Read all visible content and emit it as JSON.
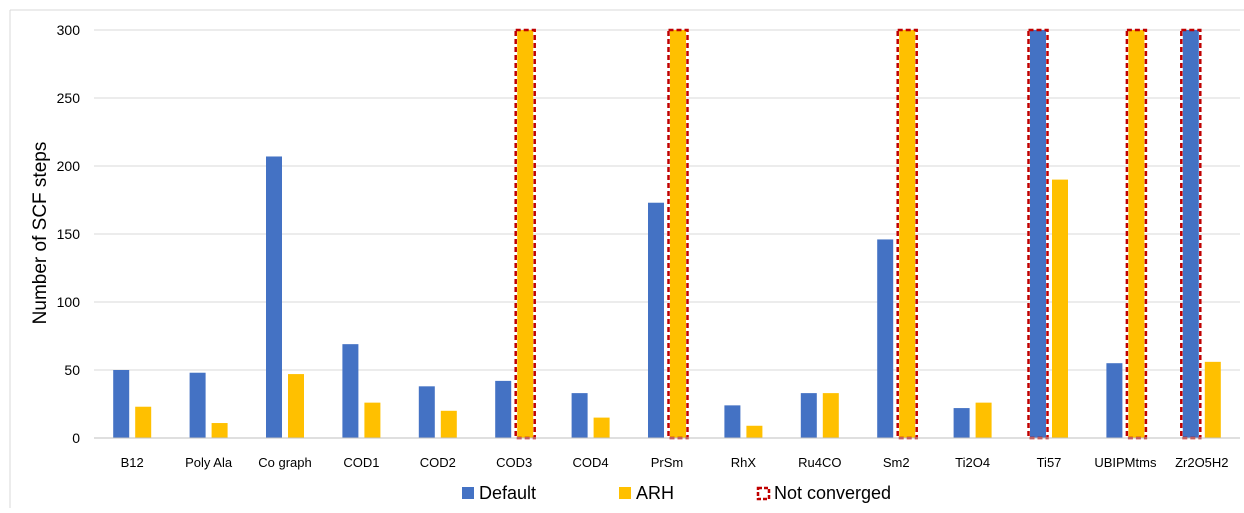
{
  "chart_data": {
    "type": "bar",
    "title": "",
    "xlabel": "",
    "ylabel": "Number of SCF steps",
    "ylim": [
      0,
      300
    ],
    "yticks": [
      0,
      50,
      100,
      150,
      200,
      250,
      300
    ],
    "grid": true,
    "legend_position": "bottom",
    "categories": [
      "B12",
      "Poly Ala",
      "Co graph",
      "COD1",
      "COD2",
      "COD3",
      "COD4",
      "PrSm",
      "RhX",
      "Ru4CO",
      "Sm2",
      "Ti2O4",
      "Ti57",
      "UBIPMtms",
      "Zr2O5H2"
    ],
    "series": [
      {
        "name": "Default",
        "color": "#4472C4",
        "values": [
          50,
          48,
          207,
          69,
          38,
          42,
          33,
          173,
          24,
          33,
          146,
          22,
          300,
          55,
          300
        ],
        "not_converged": [
          false,
          false,
          false,
          false,
          false,
          false,
          false,
          false,
          false,
          false,
          false,
          false,
          true,
          false,
          true
        ]
      },
      {
        "name": "ARH",
        "color": "#FFC000",
        "values": [
          23,
          11,
          47,
          26,
          20,
          300,
          15,
          300,
          9,
          33,
          300,
          26,
          190,
          300,
          56
        ],
        "not_converged": [
          false,
          false,
          false,
          false,
          false,
          true,
          false,
          true,
          false,
          false,
          true,
          false,
          false,
          true,
          false
        ]
      }
    ],
    "legend": [
      {
        "label": "Default",
        "color": "#4472C4",
        "kind": "fill"
      },
      {
        "label": "ARH",
        "color": "#FFC000",
        "kind": "fill"
      },
      {
        "label": "Not converged",
        "color": "#C00000",
        "kind": "dashed-outline"
      }
    ]
  }
}
